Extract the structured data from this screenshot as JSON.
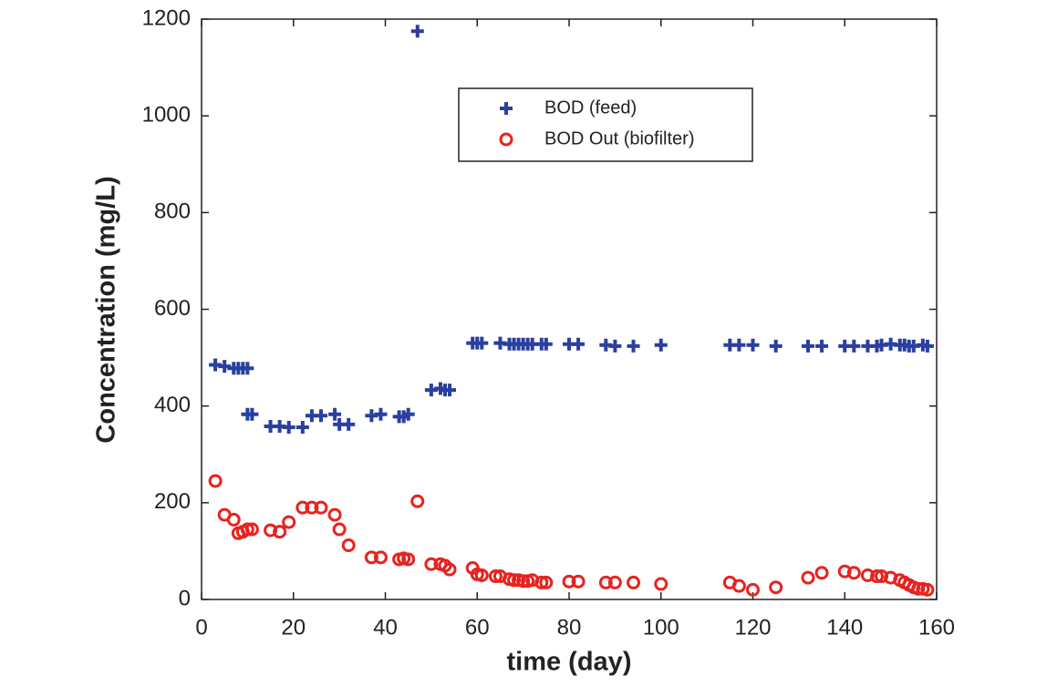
{
  "chart_data": {
    "type": "scatter",
    "x_label": "time (day)",
    "y_label": "Concentration (mg/L)",
    "xlim": [
      0,
      160
    ],
    "xticks": [
      0,
      20,
      40,
      60,
      80,
      100,
      120,
      140,
      160
    ],
    "ylim": [
      0,
      1200
    ],
    "yticks": [
      0,
      200,
      400,
      600,
      800,
      1000,
      1200
    ],
    "series": [
      {
        "name": "BOD (feed)",
        "color": "#2a3fa0",
        "marker": "plus",
        "x": [
          3,
          5,
          7,
          8,
          9,
          10,
          10,
          11,
          15,
          17,
          19,
          22,
          24,
          26,
          29,
          30,
          32,
          37,
          39,
          43,
          44,
          45,
          47,
          50,
          52,
          53,
          54,
          59,
          60,
          61,
          65,
          67,
          68,
          69,
          70,
          71,
          72,
          74,
          75,
          80,
          82,
          88,
          90,
          94,
          100,
          115,
          117,
          120,
          125,
          132,
          135,
          140,
          142,
          145,
          147,
          148,
          150,
          152,
          153,
          154,
          155,
          157,
          158
        ],
        "values": [
          485,
          482,
          478,
          478,
          478,
          478,
          383,
          383,
          358,
          358,
          356,
          356,
          380,
          380,
          383,
          362,
          362,
          380,
          383,
          378,
          378,
          383,
          1175,
          433,
          436,
          433,
          433,
          530,
          530,
          530,
          530,
          528,
          528,
          528,
          528,
          528,
          528,
          528,
          528,
          528,
          528,
          526,
          524,
          524,
          526,
          526,
          526,
          526,
          524,
          524,
          524,
          524,
          524,
          524,
          524,
          526,
          528,
          526,
          526,
          524,
          524,
          526,
          524
        ]
      },
      {
        "name": "BOD Out (biofilter)",
        "color": "#e8231f",
        "marker": "circle",
        "x": [
          3,
          5,
          7,
          8,
          9,
          10,
          11,
          15,
          17,
          19,
          22,
          24,
          26,
          29,
          30,
          32,
          37,
          39,
          43,
          44,
          45,
          47,
          50,
          52,
          53,
          54,
          59,
          60,
          61,
          64,
          65,
          67,
          68,
          69,
          70,
          71,
          72,
          74,
          75,
          80,
          82,
          88,
          90,
          94,
          100,
          115,
          117,
          120,
          125,
          132,
          135,
          140,
          142,
          145,
          147,
          148,
          150,
          152,
          153,
          154,
          155,
          156,
          157,
          158
        ],
        "values": [
          245,
          175,
          165,
          137,
          140,
          145,
          145,
          143,
          140,
          160,
          190,
          190,
          190,
          175,
          145,
          112,
          87,
          87,
          83,
          85,
          83,
          203,
          73,
          73,
          70,
          62,
          65,
          52,
          50,
          48,
          48,
          42,
          40,
          40,
          38,
          38,
          40,
          35,
          35,
          37,
          37,
          35,
          35,
          35,
          32,
          35,
          28,
          20,
          25,
          45,
          55,
          58,
          55,
          50,
          48,
          48,
          45,
          40,
          35,
          30,
          25,
          22,
          22,
          20
        ]
      }
    ],
    "legend": "top-center"
  }
}
